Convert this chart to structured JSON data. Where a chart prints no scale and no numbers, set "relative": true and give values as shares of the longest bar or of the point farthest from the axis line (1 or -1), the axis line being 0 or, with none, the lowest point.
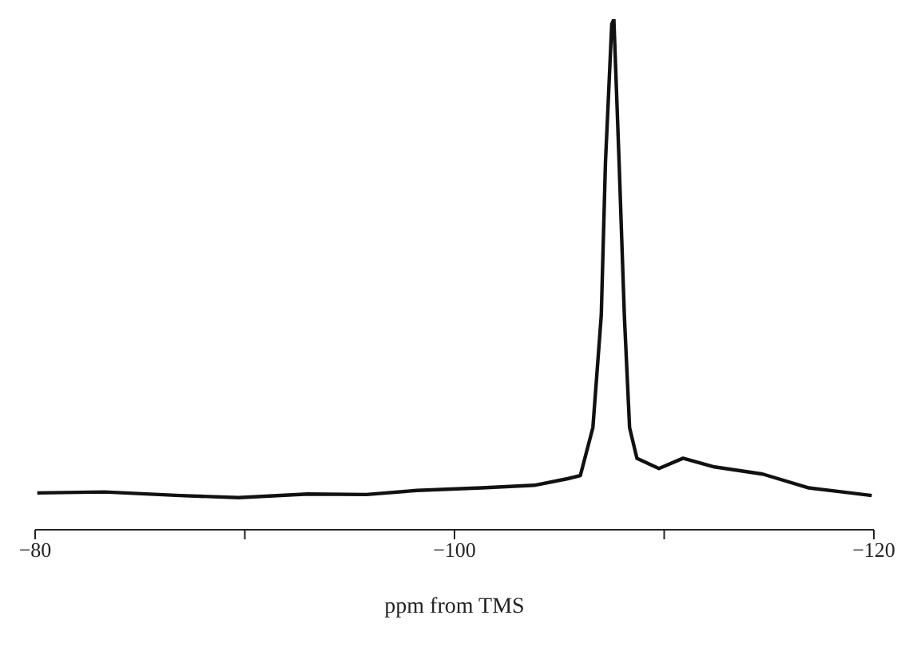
{
  "chart_data": {
    "type": "line",
    "relative": true,
    "xlabel": "ppm from TMS",
    "x": [
      -80.1,
      -83.3,
      -86.9,
      -89.7,
      -93.0,
      -95.8,
      -98.2,
      -101.3,
      -103.8,
      -105.4,
      -106.0,
      -106.6,
      -107.0,
      -107.2,
      -107.5,
      -107.6,
      -107.85,
      -108.1,
      -108.35,
      -108.7,
      -109.75,
      -110.9,
      -112.4,
      -114.7,
      -116.9,
      -118.5,
      -119.9
    ],
    "series": [
      {
        "color": "#111111",
        "values": [
          0.072,
          0.074,
          0.067,
          0.063,
          0.07,
          0.069,
          0.077,
          0.082,
          0.087,
          0.1,
          0.106,
          0.2,
          0.42,
          0.72,
          0.99,
          1,
          0.72,
          0.42,
          0.2,
          0.14,
          0.12,
          0.14,
          0.123,
          0.109,
          0.082,
          0.074,
          0.067
        ]
      }
    ],
    "xlim": [
      -80,
      -120
    ],
    "xticks": [
      {
        "value": -80,
        "label": "−80"
      },
      {
        "value": -90,
        "label": null
      },
      {
        "value": -100,
        "label": "−100"
      },
      {
        "value": -110,
        "label": null
      },
      {
        "value": -120,
        "label": "−120"
      }
    ],
    "grid": false,
    "legend": false,
    "marker": "none",
    "line_style": "solid"
  }
}
